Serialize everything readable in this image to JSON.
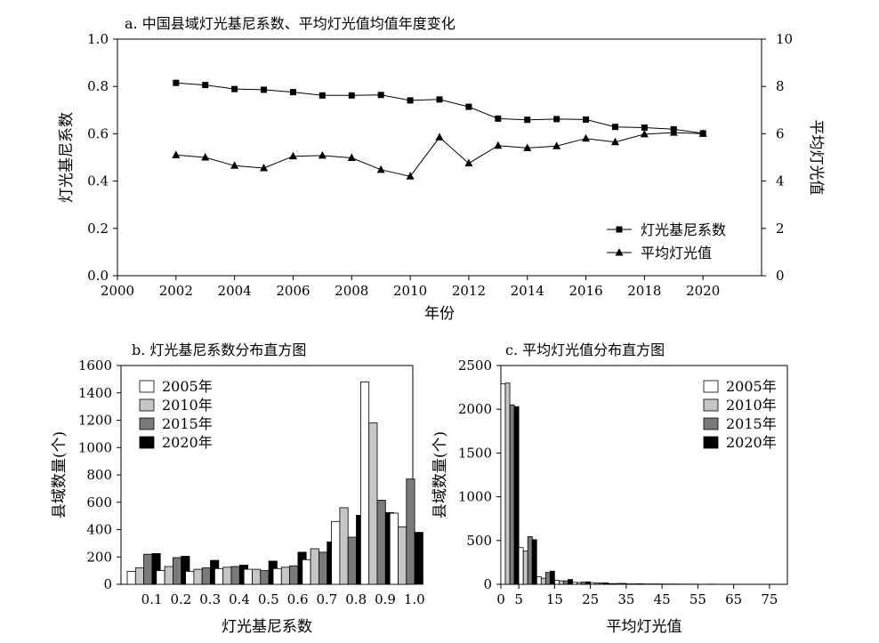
{
  "chart_data": [
    {
      "type": "line",
      "title": "a. 中国县域灯光基尼系数、平均灯光值均值年度变化",
      "xlabel": "年份",
      "ylabel": "灯光基尼系数",
      "y2label": "平均灯光值",
      "xlim": [
        2000,
        2022
      ],
      "ylim": [
        0,
        1.0
      ],
      "y2lim": [
        0,
        10
      ],
      "x_ticks": [
        "2000",
        "2002",
        "2004",
        "2006",
        "2008",
        "2010",
        "2012",
        "2014",
        "2016",
        "2018",
        "2020"
      ],
      "y_ticks": [
        "0.0",
        "0.2",
        "0.4",
        "0.6",
        "0.8",
        "1.0"
      ],
      "y2_ticks": [
        "0",
        "2",
        "4",
        "6",
        "8",
        "10"
      ],
      "legend_position": "bottom-right",
      "series": [
        {
          "name": "灯光基尼系数",
          "axis": "left",
          "marker": "square",
          "x": [
            2002,
            2003,
            2004,
            2005,
            2006,
            2007,
            2008,
            2009,
            2010,
            2011,
            2012,
            2013,
            2014,
            2015,
            2016,
            2017,
            2018,
            2019,
            2020
          ],
          "values": [
            0.815,
            0.806,
            0.789,
            0.786,
            0.776,
            0.762,
            0.762,
            0.764,
            0.741,
            0.745,
            0.714,
            0.664,
            0.659,
            0.662,
            0.66,
            0.629,
            0.626,
            0.619,
            0.602
          ]
        },
        {
          "name": "平均灯光值",
          "axis": "right",
          "marker": "triangle",
          "x": [
            2002,
            2003,
            2004,
            2005,
            2006,
            2007,
            2008,
            2009,
            2010,
            2011,
            2012,
            2013,
            2014,
            2015,
            2016,
            2017,
            2018,
            2019,
            2020
          ],
          "values": [
            5.1,
            5.0,
            4.65,
            4.55,
            5.05,
            5.08,
            4.98,
            4.48,
            4.2,
            5.85,
            4.75,
            5.5,
            5.4,
            5.48,
            5.8,
            5.65,
            5.98,
            6.05,
            6.0
          ]
        }
      ]
    },
    {
      "type": "bar",
      "title": "b. 灯光基尼系数分布直方图",
      "xlabel": "灯光基尼系数",
      "ylabel": "县域数量(个)",
      "ylim": [
        0,
        1600
      ],
      "y_ticks": [
        "0",
        "200",
        "400",
        "600",
        "800",
        "1000",
        "1200",
        "1400",
        "1600"
      ],
      "categories": [
        "0.1",
        "0.2",
        "0.3",
        "0.4",
        "0.5",
        "0.6",
        "0.7",
        "0.8",
        "0.9",
        "1.0"
      ],
      "legend_position": "top-left",
      "series": [
        {
          "name": "2005年",
          "color": "#ffffff",
          "values": [
            95,
            100,
            95,
            115,
            110,
            115,
            180,
            460,
            1480,
            520
          ]
        },
        {
          "name": "2010年",
          "color": "#c6c6c6",
          "values": [
            120,
            130,
            110,
            125,
            110,
            125,
            260,
            560,
            1180,
            420
          ]
        },
        {
          "name": "2015年",
          "color": "#7a7a7a",
          "values": [
            220,
            195,
            120,
            130,
            100,
            135,
            235,
            345,
            615,
            770
          ]
        },
        {
          "name": "2020年",
          "color": "#000000",
          "values": [
            225,
            205,
            175,
            140,
            170,
            235,
            310,
            505,
            525,
            380
          ]
        }
      ]
    },
    {
      "type": "bar",
      "title": "c. 平均灯光值分布直方图",
      "xlabel": "平均灯光值",
      "ylabel": "县域数量(个)",
      "xlim": [
        0,
        80
      ],
      "ylim": [
        0,
        2500
      ],
      "x_ticks": [
        "0",
        "5",
        "15",
        "25",
        "35",
        "45",
        "55",
        "65",
        "75"
      ],
      "y_ticks": [
        "0",
        "500",
        "1000",
        "1500",
        "2000",
        "2500"
      ],
      "bin_width": 5,
      "bin_starts": [
        0,
        5,
        10,
        15,
        20,
        25,
        30,
        35,
        40,
        45,
        50,
        55,
        60,
        65,
        70,
        75
      ],
      "legend_position": "top-right",
      "series": [
        {
          "name": "2005年",
          "color": "#ffffff",
          "values": [
            2290,
            420,
            85,
            45,
            22,
            18,
            8,
            5,
            4,
            3,
            2,
            1,
            1,
            1,
            0,
            0
          ]
        },
        {
          "name": "2010年",
          "color": "#c6c6c6",
          "values": [
            2300,
            380,
            70,
            40,
            20,
            15,
            8,
            5,
            4,
            3,
            2,
            1,
            1,
            1,
            0,
            0
          ]
        },
        {
          "name": "2015年",
          "color": "#7a7a7a",
          "values": [
            2050,
            545,
            135,
            40,
            25,
            15,
            10,
            6,
            4,
            3,
            2,
            2,
            1,
            1,
            0,
            0
          ]
        },
        {
          "name": "2020年",
          "color": "#000000",
          "values": [
            2030,
            510,
            150,
            55,
            28,
            16,
            10,
            6,
            4,
            3,
            2,
            2,
            1,
            1,
            0,
            0
          ]
        }
      ]
    }
  ]
}
